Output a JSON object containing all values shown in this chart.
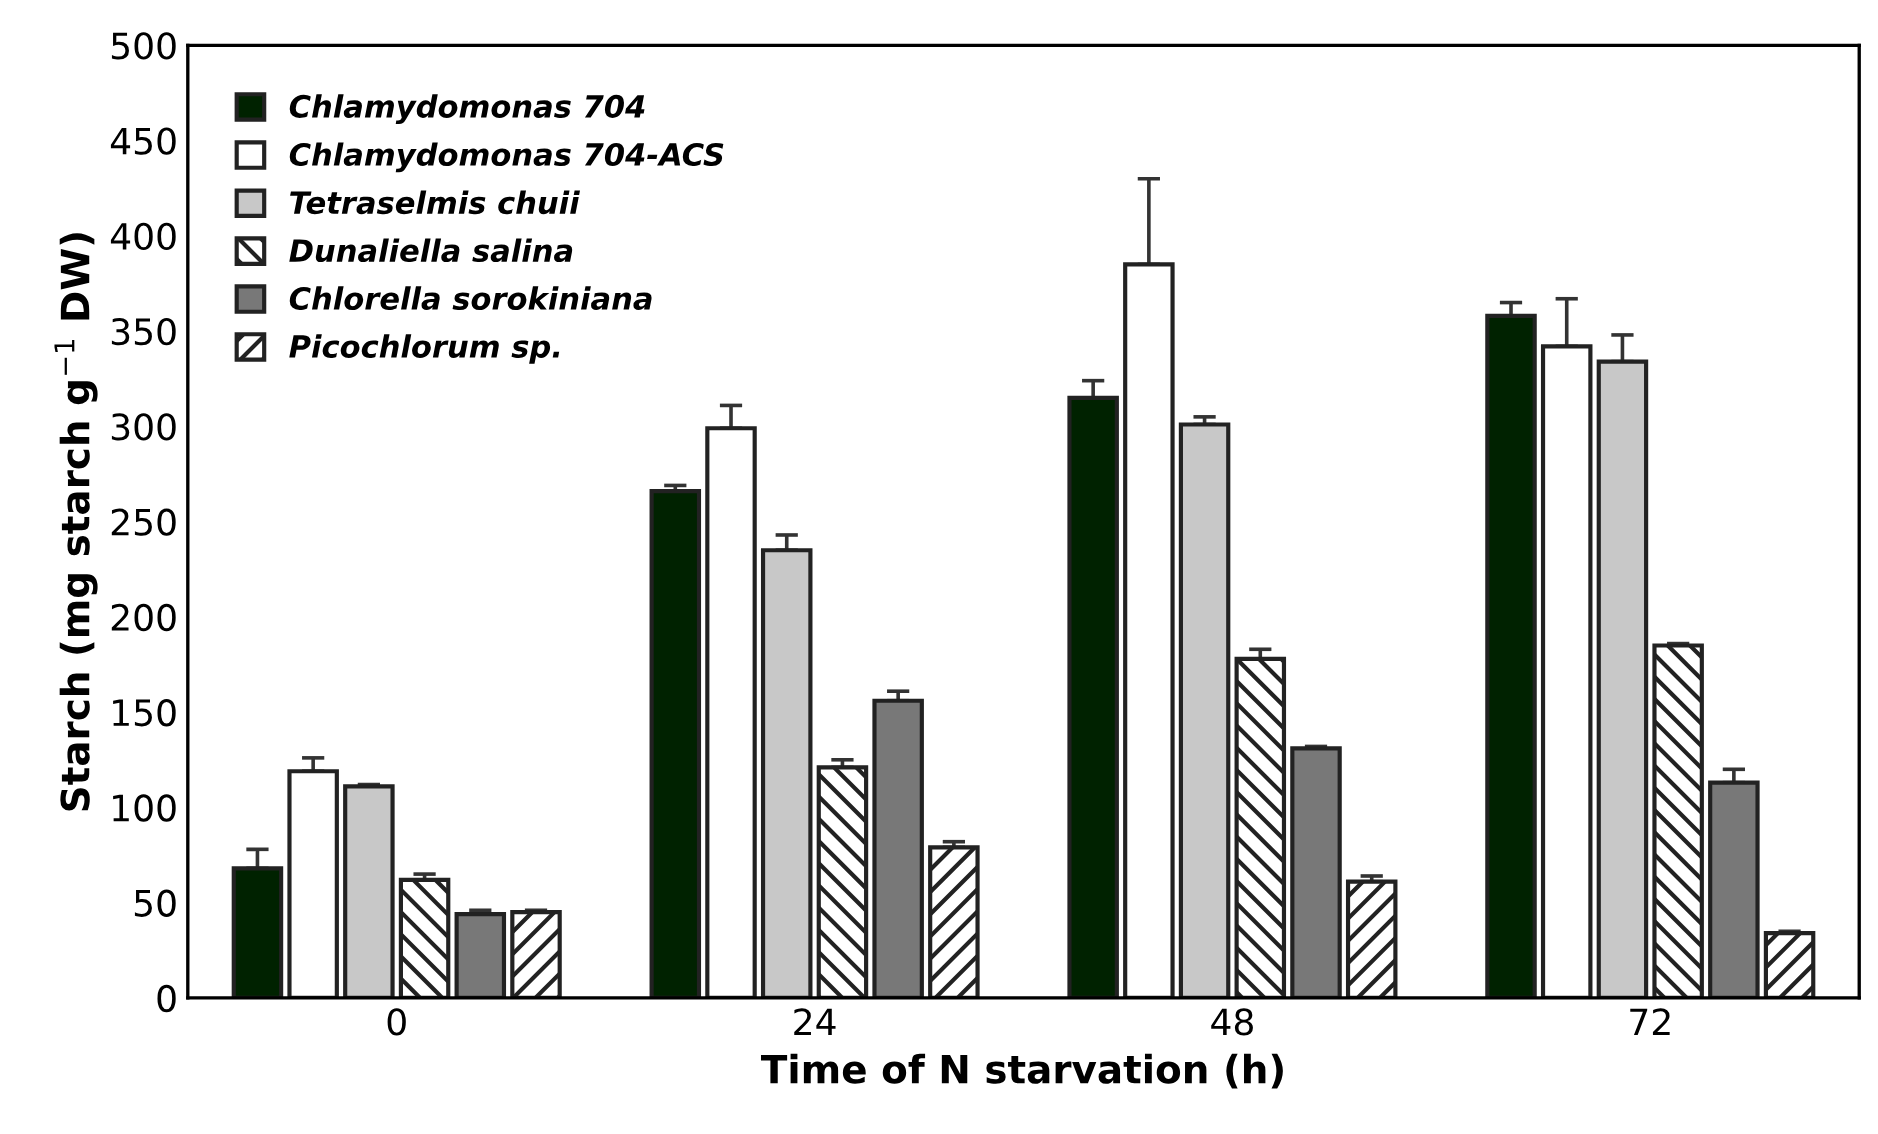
{
  "chart_data": {
    "type": "bar",
    "xlabel": "Time of N starvation (h)",
    "ylabel": "Starch (mg starch g$^{−1}$ DW)",
    "categories": [
      "0",
      "24",
      "48",
      "72"
    ],
    "series": [
      {
        "name": "Chlamydomonas 704",
        "color": "#002200",
        "values": [
          68,
          266,
          315,
          358
        ],
        "errors": [
          10,
          3,
          9,
          7
        ]
      },
      {
        "name": "Chlamydomonas 704-ACS",
        "color": "#ffffff",
        "values": [
          119,
          299,
          385,
          342
        ],
        "errors": [
          7,
          12,
          45,
          25
        ]
      },
      {
        "name": "Tetraselmis chuii",
        "color": "#c8c8c8",
        "values": [
          111,
          235,
          301,
          334
        ],
        "errors": [
          1,
          8,
          4,
          14
        ]
      },
      {
        "name": "Dunaliella salina",
        "color": "#222222",
        "values": [
          62,
          121,
          178,
          185
        ],
        "errors": [
          3,
          4,
          5,
          1
        ]
      },
      {
        "name": "Chlorella sorokiniana",
        "color": "#787878",
        "values": [
          44,
          156,
          131,
          113
        ],
        "errors": [
          2,
          5,
          1,
          7
        ]
      },
      {
        "name": "Picochlorum sp.",
        "color": "#222222",
        "values": [
          45,
          79,
          61,
          34
        ],
        "errors": [
          1,
          3,
          3,
          1
        ]
      }
    ],
    "ylim": [
      0,
      500
    ],
    "yticks": [
      0,
      50,
      100,
      150,
      200,
      250,
      300,
      350,
      400,
      450,
      500
    ],
    "grid": false,
    "legend": "top left"
  }
}
